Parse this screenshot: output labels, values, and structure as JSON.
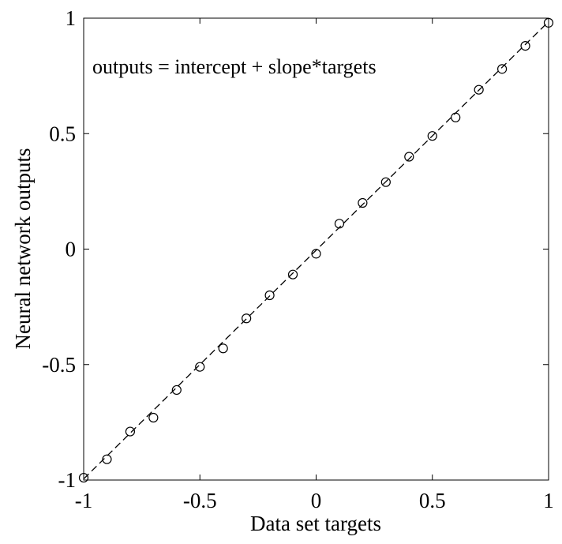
{
  "chart_data": {
    "type": "scatter",
    "title": "",
    "annotation": "outputs = intercept + slope*targets",
    "xlabel": "Data set targets",
    "ylabel": "Neural network outputs",
    "xlim": [
      -1,
      1
    ],
    "ylim": [
      -1,
      1
    ],
    "xticks": [
      "-1",
      "-0.5",
      "0",
      "0.5",
      "1"
    ],
    "yticks": [
      "-1",
      "-0.5",
      "0",
      "0.5",
      "1"
    ],
    "grid": false,
    "legend": "none",
    "series": [
      {
        "marker": "open-circle",
        "x": [
          -1.0,
          -0.9,
          -0.8,
          -0.7,
          -0.6,
          -0.5,
          -0.4,
          -0.3,
          -0.2,
          -0.1,
          0.0,
          0.1,
          0.2,
          0.3,
          0.4,
          0.5,
          0.6,
          0.7,
          0.8,
          0.9,
          1.0
        ],
        "y": [
          -0.99,
          -0.91,
          -0.79,
          -0.73,
          -0.61,
          -0.51,
          -0.43,
          -0.3,
          -0.2,
          -0.11,
          -0.02,
          0.11,
          0.2,
          0.29,
          0.4,
          0.49,
          0.57,
          0.69,
          0.78,
          0.88,
          0.98
        ]
      }
    ],
    "fit_line": {
      "style": "dashed",
      "x": [
        -1,
        1
      ],
      "y": [
        -0.995,
        0.985
      ]
    }
  }
}
